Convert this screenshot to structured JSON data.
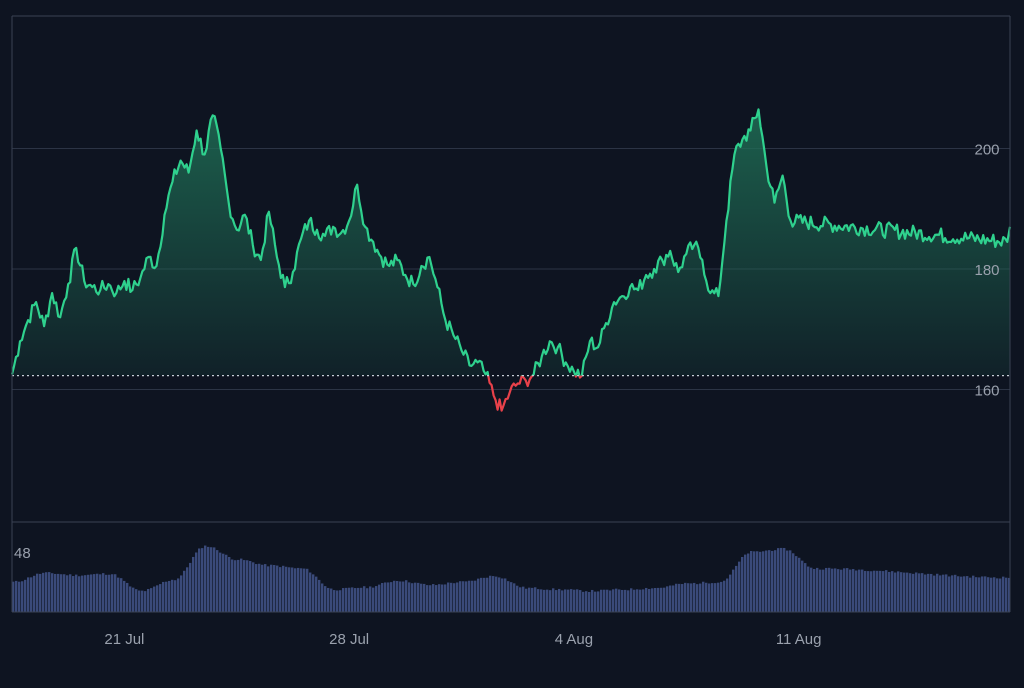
{
  "colors": {
    "background": "#0e1421",
    "gridline": "#2c3445",
    "frame": "#3a4254",
    "line_up": "#2fd18e",
    "line_down": "#e8414a",
    "area_top": "#1f6e55",
    "volume": "#3a4a7a",
    "tick_text": "#9aa1ad",
    "baseline": "#c7ccd6"
  },
  "chart_data": [
    {
      "type": "area",
      "title": "",
      "xlabel": "",
      "ylabel": "",
      "ylim": [
        138,
        222
      ],
      "yticks": [
        160,
        180,
        200
      ],
      "baseline_value": 162.3,
      "baseline_style": "dotted",
      "grid": true,
      "x_tick_labels": [
        {
          "label": "21 Jul",
          "date": "2024-07-21"
        },
        {
          "label": "28 Jul",
          "date": "2024-07-28"
        },
        {
          "label": "4 Aug",
          "date": "2024-08-04"
        },
        {
          "label": "11 Aug",
          "date": "2024-08-11"
        }
      ],
      "x_range": [
        "2024-07-17 12:00",
        "2024-08-17 14:00"
      ],
      "series": [
        {
          "coloring": "green above baseline, red below baseline",
          "points": [
            [
              "2024-07-17 12:00",
              162.5
            ],
            [
              "2024-07-17 18:00",
              168.0
            ],
            [
              "2024-07-18 00:00",
              171.5
            ],
            [
              "2024-07-18 06:00",
              174.5
            ],
            [
              "2024-07-18 12:00",
              170.5
            ],
            [
              "2024-07-18 18:00",
              176.0
            ],
            [
              "2024-07-19 00:00",
              172.0
            ],
            [
              "2024-07-19 06:00",
              177.5
            ],
            [
              "2024-07-19 12:00",
              183.5
            ],
            [
              "2024-07-19 18:00",
              178.0
            ],
            [
              "2024-07-20 00:00",
              177.0
            ],
            [
              "2024-07-20 06:00",
              176.5
            ],
            [
              "2024-07-20 12:00",
              177.5
            ],
            [
              "2024-07-20 18:00",
              176.0
            ],
            [
              "2024-07-21 00:00",
              178.0
            ],
            [
              "2024-07-21 06:00",
              176.5
            ],
            [
              "2024-07-21 12:00",
              178.5
            ],
            [
              "2024-07-21 18:00",
              182.0
            ],
            [
              "2024-07-22 00:00",
              180.5
            ],
            [
              "2024-07-22 06:00",
              189.0
            ],
            [
              "2024-07-22 12:00",
              194.5
            ],
            [
              "2024-07-22 18:00",
              198.0
            ],
            [
              "2024-07-23 00:00",
              196.0
            ],
            [
              "2024-07-23 06:00",
              203.0
            ],
            [
              "2024-07-23 12:00",
              199.0
            ],
            [
              "2024-07-23 18:00",
              205.5
            ],
            [
              "2024-07-24 00:00",
              200.0
            ],
            [
              "2024-07-24 06:00",
              191.0
            ],
            [
              "2024-07-24 12:00",
              186.5
            ],
            [
              "2024-07-24 18:00",
              189.0
            ],
            [
              "2024-07-25 00:00",
              184.0
            ],
            [
              "2024-07-25 06:00",
              181.5
            ],
            [
              "2024-07-25 12:00",
              189.5
            ],
            [
              "2024-07-25 18:00",
              182.0
            ],
            [
              "2024-07-26 00:00",
              177.0
            ],
            [
              "2024-07-26 06:00",
              179.5
            ],
            [
              "2024-07-26 12:00",
              185.0
            ],
            [
              "2024-07-26 18:00",
              188.0
            ],
            [
              "2024-07-27 00:00",
              186.5
            ],
            [
              "2024-07-27 06:00",
              185.5
            ],
            [
              "2024-07-27 12:00",
              187.0
            ],
            [
              "2024-07-27 18:00",
              186.0
            ],
            [
              "2024-07-28 00:00",
              188.0
            ],
            [
              "2024-07-28 06:00",
              194.0
            ],
            [
              "2024-07-28 12:00",
              187.0
            ],
            [
              "2024-07-28 18:00",
              184.5
            ],
            [
              "2024-07-29 00:00",
              182.0
            ],
            [
              "2024-07-29 06:00",
              180.5
            ],
            [
              "2024-07-29 12:00",
              181.5
            ],
            [
              "2024-07-29 18:00",
              179.0
            ],
            [
              "2024-07-30 00:00",
              177.5
            ],
            [
              "2024-07-30 06:00",
              180.5
            ],
            [
              "2024-07-30 12:00",
              182.0
            ],
            [
              "2024-07-30 18:00",
              177.0
            ],
            [
              "2024-07-31 00:00",
              171.5
            ],
            [
              "2024-07-31 06:00",
              169.0
            ],
            [
              "2024-07-31 12:00",
              166.5
            ],
            [
              "2024-07-31 18:00",
              164.0
            ],
            [
              "2024-08-01 00:00",
              164.5
            ],
            [
              "2024-08-01 06:00",
              162.5
            ],
            [
              "2024-08-01 12:00",
              159.0
            ],
            [
              "2024-08-01 18:00",
              156.5
            ],
            [
              "2024-08-02 00:00",
              159.5
            ],
            [
              "2024-08-02 06:00",
              161.0
            ],
            [
              "2024-08-02 12:00",
              161.5
            ],
            [
              "2024-08-02 18:00",
              162.5
            ],
            [
              "2024-08-03 00:00",
              165.5
            ],
            [
              "2024-08-03 06:00",
              168.0
            ],
            [
              "2024-08-03 12:00",
              167.0
            ],
            [
              "2024-08-03 18:00",
              164.5
            ],
            [
              "2024-08-04 00:00",
              163.0
            ],
            [
              "2024-08-04 06:00",
              162.3
            ],
            [
              "2024-08-04 12:00",
              168.0
            ],
            [
              "2024-08-04 18:00",
              167.0
            ],
            [
              "2024-08-05 00:00",
              171.0
            ],
            [
              "2024-08-05 06:00",
              174.5
            ],
            [
              "2024-08-05 12:00",
              175.5
            ],
            [
              "2024-08-05 18:00",
              177.0
            ],
            [
              "2024-08-06 00:00",
              176.5
            ],
            [
              "2024-08-06 06:00",
              179.0
            ],
            [
              "2024-08-06 12:00",
              180.0
            ],
            [
              "2024-08-06 18:00",
              181.5
            ],
            [
              "2024-08-07 00:00",
              183.0
            ],
            [
              "2024-08-07 06:00",
              179.5
            ],
            [
              "2024-08-07 12:00",
              182.5
            ],
            [
              "2024-08-07 18:00",
              184.0
            ],
            [
              "2024-08-08 00:00",
              181.5
            ],
            [
              "2024-08-08 06:00",
              176.0
            ],
            [
              "2024-08-08 12:00",
              175.5
            ],
            [
              "2024-08-08 18:00",
              188.0
            ],
            [
              "2024-08-09 00:00",
              199.0
            ],
            [
              "2024-08-09 06:00",
              201.5
            ],
            [
              "2024-08-09 12:00",
              203.0
            ],
            [
              "2024-08-09 18:00",
              206.5
            ],
            [
              "2024-08-10 00:00",
              197.0
            ],
            [
              "2024-08-10 06:00",
              191.0
            ],
            [
              "2024-08-10 12:00",
              195.5
            ],
            [
              "2024-08-10 18:00",
              188.0
            ],
            [
              "2024-08-17 12:00",
              184.5
            ],
            [
              "2024-08-17 14:00",
              187.0
            ]
          ]
        }
      ]
    },
    {
      "type": "bar",
      "title": "",
      "ylim": [
        0,
        120
      ],
      "visible_axis_label": "48",
      "series": [
        {
          "name": "",
          "profile_points": [
            [
              "2024-07-17 12:00",
              40
            ],
            [
              "2024-07-18 12:00",
              52
            ],
            [
              "2024-07-19 12:00",
              49
            ],
            [
              "2024-07-20 12:00",
              51
            ],
            [
              "2024-07-21 12:00",
              28
            ],
            [
              "2024-07-22 12:00",
              43
            ],
            [
              "2024-07-23 12:00",
              88
            ],
            [
              "2024-07-24 12:00",
              70
            ],
            [
              "2024-07-25 12:00",
              62
            ],
            [
              "2024-07-26 12:00",
              58
            ],
            [
              "2024-07-27 12:00",
              30
            ],
            [
              "2024-07-28 12:00",
              33
            ],
            [
              "2024-07-29 12:00",
              42
            ],
            [
              "2024-07-30 12:00",
              36
            ],
            [
              "2024-07-31 12:00",
              40
            ],
            [
              "2024-08-01 12:00",
              48
            ],
            [
              "2024-08-02 12:00",
              32
            ],
            [
              "2024-08-03 12:00",
              30
            ],
            [
              "2024-08-04 12:00",
              28
            ],
            [
              "2024-08-05 12:00",
              30
            ],
            [
              "2024-08-06 12:00",
              32
            ],
            [
              "2024-08-07 12:00",
              38
            ],
            [
              "2024-08-08 12:00",
              40
            ],
            [
              "2024-08-09 12:00",
              80
            ],
            [
              "2024-08-10 12:00",
              84
            ],
            [
              "2024-08-11 12:00",
              58
            ],
            [
              "2024-08-17 14:00",
              46
            ]
          ]
        }
      ]
    }
  ]
}
